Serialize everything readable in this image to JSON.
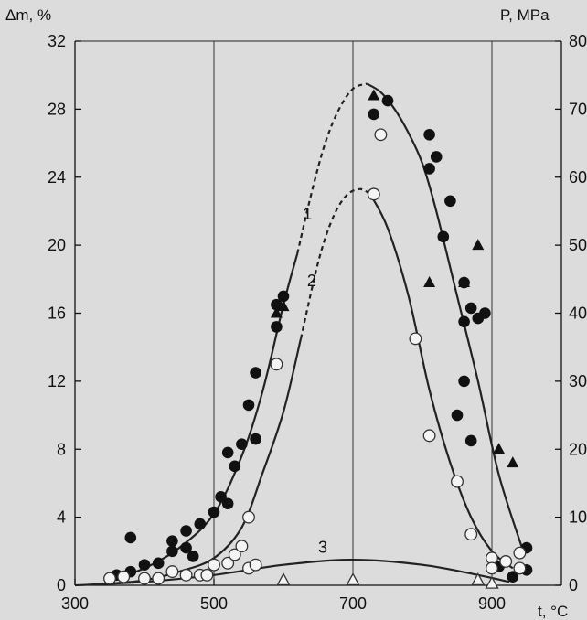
{
  "chart_data": {
    "type": "scatter",
    "left_axis_label": "Δm, %",
    "right_axis_label": "P, MPa",
    "x_axis_label": "t, °C",
    "xlim": [
      300,
      1000
    ],
    "ylim": [
      0,
      32
    ],
    "y2lim": [
      0,
      80
    ],
    "x_ticks": [
      300,
      500,
      700,
      900
    ],
    "y_ticks": [
      0,
      4,
      8,
      12,
      16,
      20,
      24,
      28,
      32
    ],
    "y2_ticks": [
      0,
      10,
      20,
      30,
      40,
      50,
      60,
      70,
      80
    ],
    "grid": true,
    "curve_labels": [
      "1",
      "2",
      "3"
    ],
    "series": [
      {
        "marker": "filled-circle",
        "points": [
          [
            360,
            0.6
          ],
          [
            380,
            0.8
          ],
          [
            400,
            1.2
          ],
          [
            420,
            1.3
          ],
          [
            380,
            2.8
          ],
          [
            440,
            2.6
          ],
          [
            460,
            2.2
          ],
          [
            460,
            3.2
          ],
          [
            480,
            3.6
          ],
          [
            440,
            2.0
          ],
          [
            500,
            4.3
          ],
          [
            470,
            1.7
          ],
          [
            520,
            4.8
          ],
          [
            510,
            5.2
          ],
          [
            530,
            7.0
          ],
          [
            520,
            7.8
          ],
          [
            540,
            8.3
          ],
          [
            560,
            8.6
          ],
          [
            550,
            10.6
          ],
          [
            560,
            12.5
          ],
          [
            590,
            15.2
          ],
          [
            600,
            17.0
          ],
          [
            590,
            16.5
          ],
          [
            730,
            27.7
          ],
          [
            750,
            28.5
          ],
          [
            810,
            26.5
          ],
          [
            820,
            25.2
          ],
          [
            840,
            22.6
          ],
          [
            830,
            20.5
          ],
          [
            860,
            17.8
          ],
          [
            880,
            15.7
          ],
          [
            890,
            16.0
          ],
          [
            860,
            15.5
          ],
          [
            870,
            16.3
          ],
          [
            860,
            12.0
          ],
          [
            850,
            10.0
          ],
          [
            810,
            24.5
          ],
          [
            870,
            8.5
          ],
          [
            910,
            1.1
          ],
          [
            930,
            0.5
          ],
          [
            950,
            0.9
          ],
          [
            950,
            2.2
          ]
        ]
      },
      {
        "marker": "hollow-circle",
        "points": [
          [
            350,
            0.4
          ],
          [
            370,
            0.5
          ],
          [
            400,
            0.4
          ],
          [
            420,
            0.4
          ],
          [
            440,
            0.8
          ],
          [
            460,
            0.6
          ],
          [
            480,
            0.6
          ],
          [
            490,
            0.6
          ],
          [
            500,
            1.2
          ],
          [
            520,
            1.3
          ],
          [
            530,
            1.8
          ],
          [
            540,
            2.3
          ],
          [
            550,
            4.0
          ],
          [
            550,
            1.0
          ],
          [
            560,
            1.2
          ],
          [
            590,
            13.0
          ],
          [
            730,
            23.0
          ],
          [
            740,
            26.5
          ],
          [
            790,
            14.5
          ],
          [
            810,
            8.8
          ],
          [
            850,
            6.1
          ],
          [
            870,
            3.0
          ],
          [
            900,
            1.6
          ],
          [
            900,
            1.0
          ],
          [
            920,
            1.4
          ],
          [
            940,
            1.9
          ],
          [
            940,
            1.0
          ]
        ]
      },
      {
        "marker": "filled-triangle",
        "axis": "right",
        "points": [
          [
            590,
            40.0
          ],
          [
            600,
            41.0
          ],
          [
            730,
            72.0
          ],
          [
            810,
            44.5
          ],
          [
            860,
            44.5
          ],
          [
            880,
            50.0
          ],
          [
            910,
            20.0
          ],
          [
            930,
            18.0
          ]
        ]
      },
      {
        "marker": "hollow-triangle",
        "points": [
          [
            600,
            0.3
          ],
          [
            700,
            0.3
          ],
          [
            880,
            0.3
          ],
          [
            900,
            0.1
          ]
        ]
      }
    ],
    "curves": [
      {
        "label": "1",
        "solid": [
          [
            350,
            0.3
          ],
          [
            400,
            1.0
          ],
          [
            450,
            2.2
          ],
          [
            500,
            4.2
          ],
          [
            540,
            7.6
          ],
          [
            570,
            11.4
          ],
          [
            600,
            16.5
          ],
          [
            620,
            19.5
          ]
        ],
        "dashed": [
          [
            620,
            19.5
          ],
          [
            640,
            23.0
          ],
          [
            660,
            26.0
          ],
          [
            680,
            28.0
          ],
          [
            700,
            29.2
          ],
          [
            720,
            29.5
          ]
        ],
        "solid_tail": [
          [
            720,
            29.5
          ],
          [
            740,
            29.0
          ],
          [
            760,
            28.0
          ],
          [
            780,
            26.6
          ],
          [
            800,
            24.8
          ],
          [
            820,
            22.0
          ],
          [
            850,
            17.0
          ],
          [
            880,
            12.0
          ],
          [
            910,
            6.5
          ],
          [
            945,
            2.0
          ]
        ]
      },
      {
        "label": "2",
        "solid": [
          [
            350,
            0.1
          ],
          [
            400,
            0.3
          ],
          [
            450,
            0.8
          ],
          [
            500,
            1.6
          ],
          [
            540,
            3.4
          ],
          [
            570,
            6.6
          ],
          [
            600,
            10.2
          ],
          [
            625,
            14.5
          ]
        ],
        "dashed": [
          [
            625,
            14.5
          ],
          [
            650,
            19.0
          ],
          [
            670,
            21.5
          ],
          [
            690,
            22.9
          ],
          [
            710,
            23.3
          ],
          [
            725,
            23.0
          ]
        ],
        "solid_tail": [
          [
            725,
            23.0
          ],
          [
            750,
            21.0
          ],
          [
            780,
            17.0
          ],
          [
            810,
            11.5
          ],
          [
            840,
            7.2
          ],
          [
            870,
            4.0
          ],
          [
            900,
            2.0
          ],
          [
            930,
            1.0
          ]
        ]
      },
      {
        "label": "3",
        "solid": [
          [
            300,
            0.0
          ],
          [
            400,
            0.2
          ],
          [
            500,
            0.6
          ],
          [
            600,
            1.2
          ],
          [
            700,
            1.5
          ],
          [
            800,
            1.2
          ],
          [
            880,
            0.6
          ],
          [
            925,
            0.2
          ]
        ]
      }
    ]
  }
}
